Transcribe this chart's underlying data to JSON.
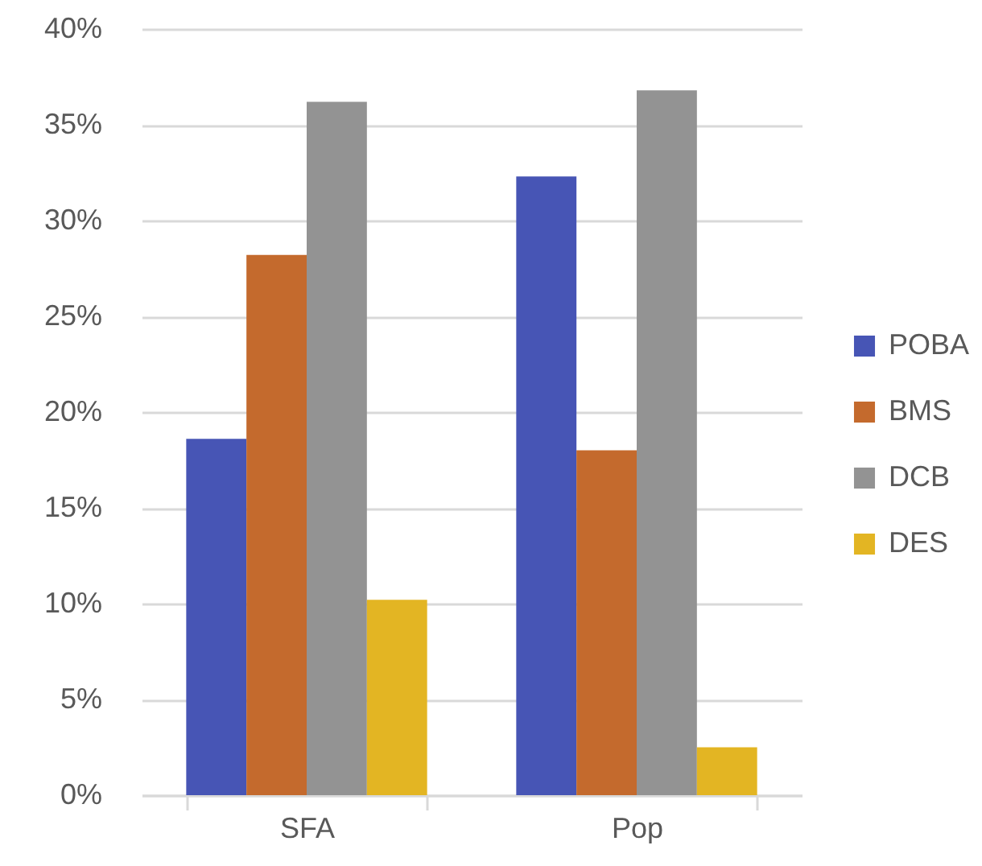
{
  "chart_data": {
    "type": "bar",
    "categories": [
      "SFA",
      "Pop"
    ],
    "series": [
      {
        "name": "POBA",
        "color": "#4755b5",
        "values": [
          18.6,
          32.3
        ]
      },
      {
        "name": "BMS",
        "color": "#c46a2d",
        "values": [
          28.2,
          18.0
        ]
      },
      {
        "name": "DCB",
        "color": "#939393",
        "values": [
          36.2,
          36.8
        ]
      },
      {
        "name": "DES",
        "color": "#e3b523",
        "values": [
          10.2,
          2.5
        ]
      }
    ],
    "ylim": [
      0,
      40
    ],
    "yticks": [
      {
        "value": 0,
        "label": "0%"
      },
      {
        "value": 5,
        "label": "5%"
      },
      {
        "value": 10,
        "label": "10%"
      },
      {
        "value": 15,
        "label": "15%"
      },
      {
        "value": 20,
        "label": "20%"
      },
      {
        "value": 25,
        "label": "25%"
      },
      {
        "value": 30,
        "label": "30%"
      },
      {
        "value": 35,
        "label": "35%"
      },
      {
        "value": 40,
        "label": "40%"
      }
    ],
    "grid": "y",
    "legend": "right"
  }
}
